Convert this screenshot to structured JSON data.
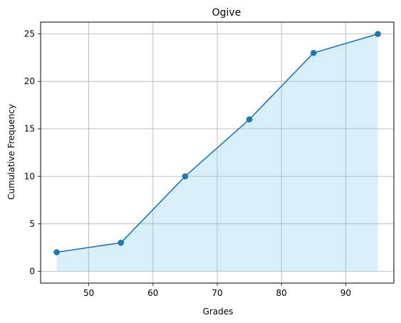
{
  "chart_data": {
    "type": "line",
    "title": "Ogive",
    "xlabel": "Grades",
    "ylabel": "Cumulative Frequency",
    "x": [
      45,
      55,
      65,
      75,
      85,
      95
    ],
    "series": [
      {
        "values": [
          2,
          3,
          10,
          16,
          23,
          25
        ]
      }
    ],
    "xlim": [
      42.5,
      97.5
    ],
    "ylim": [
      -1.25,
      26.25
    ],
    "xticks": [
      50,
      60,
      70,
      80,
      90
    ],
    "yticks": [
      0,
      5,
      10,
      15,
      20,
      25
    ],
    "grid": true,
    "area_fill": true,
    "colors": {
      "line": "#1f77b4",
      "fill": "#87ceeb",
      "grid": "#b0b0b0"
    }
  }
}
